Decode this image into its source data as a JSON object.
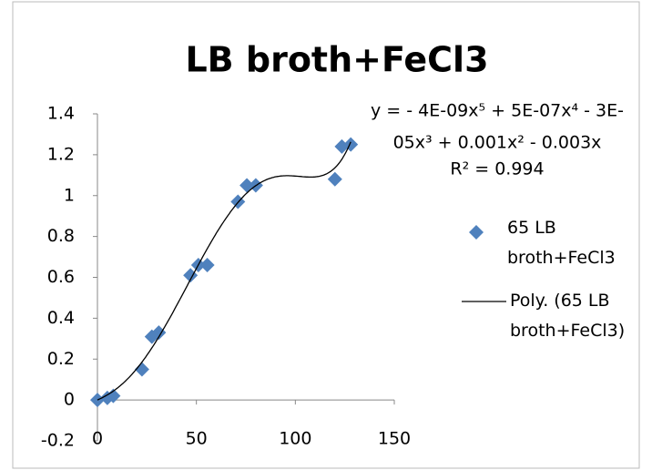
{
  "chart_data": {
    "type": "scatter",
    "title": "LB broth+FeCl3",
    "series": [
      {
        "name": "65 LB broth+FeCl3",
        "color": "#4f81bd",
        "marker": "diamond",
        "x": [
          0,
          5,
          8,
          22.5,
          27.5,
          31,
          47,
          51,
          55.5,
          71,
          75.5,
          80,
          120,
          123.5,
          128
        ],
        "values": [
          0,
          0.01,
          0.02,
          0.15,
          0.31,
          0.33,
          0.61,
          0.66,
          0.66,
          0.97,
          1.05,
          1.05,
          1.08,
          1.24,
          1.25
        ]
      }
    ],
    "trendline": {
      "name": "Poly. (65 LB broth+FeCl3)",
      "order": 5,
      "color": "#000000",
      "equation_lines": [
        "y =  - 4E-09x⁵ + 5E-07x⁴ - 3E-",
        "05x³ + 0.001x² - 0.003x",
        "R² = 0.994"
      ]
    },
    "xlim": [
      0,
      150
    ],
    "xticks": [
      0,
      50,
      100,
      150
    ],
    "ylim": [
      -0.2,
      1.4
    ],
    "yticks": [
      -0.2,
      0,
      0.2,
      0.4,
      0.6,
      0.8,
      1,
      1.2,
      1.4
    ],
    "grid": false,
    "legend": "right"
  }
}
